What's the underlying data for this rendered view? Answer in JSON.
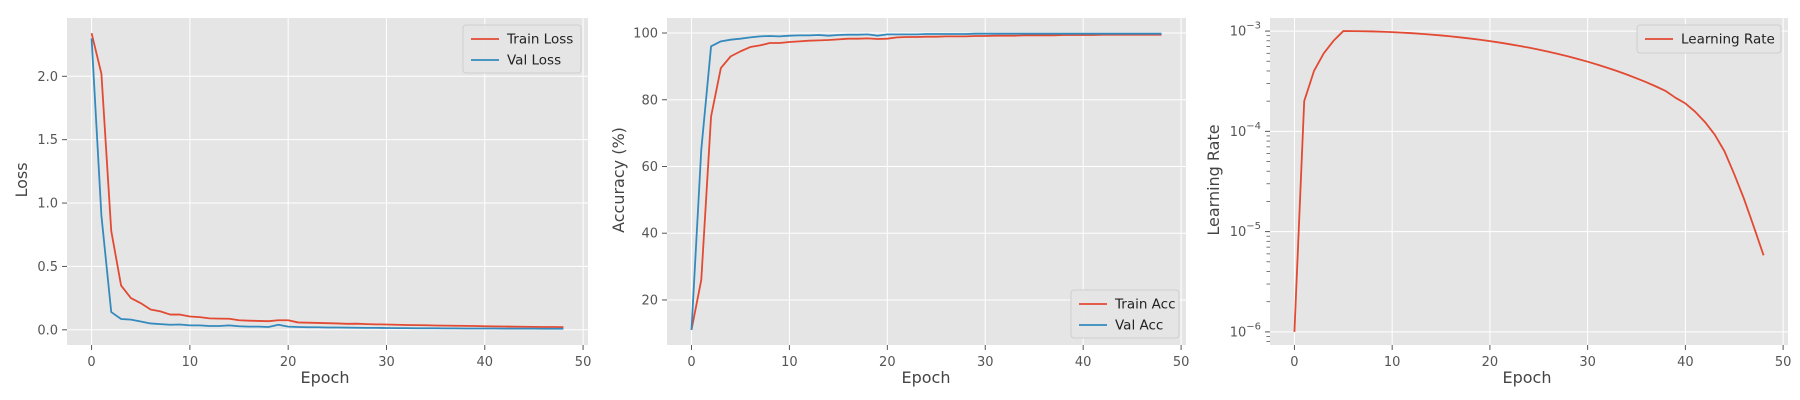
{
  "colors": {
    "background": "#ffffff",
    "panel": "#e5e5e5",
    "grid": "#ffffff",
    "tick_text": "#555555",
    "label_text": "#444444",
    "series_red": "#e24a33",
    "series_blue": "#348abd"
  },
  "chart_data": [
    {
      "type": "line",
      "title": "",
      "xlabel": "Epoch",
      "ylabel": "Loss",
      "xlim": [
        -2.5,
        50.5
      ],
      "ylim": [
        -0.12,
        2.46
      ],
      "xticks": [
        0,
        10,
        20,
        30,
        40,
        50
      ],
      "xtick_labels": [
        "0",
        "10",
        "20",
        "30",
        "40",
        "50"
      ],
      "yticks": [
        0.0,
        0.5,
        1.0,
        1.5,
        2.0
      ],
      "ytick_labels": [
        "0.0",
        "0.5",
        "1.0",
        "1.5",
        "2.0"
      ],
      "yscale": "linear",
      "grid": true,
      "legend_position": "top-right",
      "series": [
        {
          "name": "Train Loss",
          "color": "#e24a33",
          "x": [
            0,
            1,
            2,
            3,
            4,
            5,
            6,
            7,
            8,
            9,
            10,
            11,
            12,
            13,
            14,
            15,
            16,
            17,
            18,
            19,
            20,
            21,
            22,
            23,
            24,
            25,
            26,
            27,
            28,
            29,
            30,
            31,
            32,
            33,
            34,
            35,
            36,
            37,
            38,
            39,
            40,
            41,
            42,
            43,
            44,
            45,
            46,
            47,
            48
          ],
          "y": [
            2.34,
            2.02,
            0.78,
            0.35,
            0.25,
            0.21,
            0.16,
            0.145,
            0.12,
            0.12,
            0.105,
            0.1,
            0.09,
            0.088,
            0.087,
            0.075,
            0.072,
            0.07,
            0.068,
            0.075,
            0.075,
            0.058,
            0.056,
            0.054,
            0.052,
            0.05,
            0.047,
            0.048,
            0.045,
            0.043,
            0.042,
            0.04,
            0.038,
            0.037,
            0.036,
            0.034,
            0.033,
            0.032,
            0.031,
            0.03,
            0.028,
            0.027,
            0.026,
            0.025,
            0.024,
            0.023,
            0.022,
            0.022,
            0.021
          ]
        },
        {
          "name": "Val Loss",
          "color": "#348abd",
          "x": [
            0,
            1,
            2,
            3,
            4,
            5,
            6,
            7,
            8,
            9,
            10,
            11,
            12,
            13,
            14,
            15,
            16,
            17,
            18,
            19,
            20,
            21,
            22,
            23,
            24,
            25,
            26,
            27,
            28,
            29,
            30,
            31,
            32,
            33,
            34,
            35,
            36,
            37,
            38,
            39,
            40,
            41,
            42,
            43,
            44,
            45,
            46,
            47,
            48
          ],
          "y": [
            2.3,
            0.9,
            0.14,
            0.085,
            0.08,
            0.065,
            0.05,
            0.045,
            0.04,
            0.042,
            0.035,
            0.035,
            0.03,
            0.03,
            0.035,
            0.028,
            0.025,
            0.025,
            0.022,
            0.04,
            0.025,
            0.022,
            0.02,
            0.02,
            0.018,
            0.018,
            0.017,
            0.016,
            0.015,
            0.015,
            0.014,
            0.013,
            0.013,
            0.012,
            0.012,
            0.012,
            0.011,
            0.011,
            0.01,
            0.01,
            0.01,
            0.01,
            0.009,
            0.009,
            0.009,
            0.009,
            0.008,
            0.008,
            0.008
          ]
        }
      ]
    },
    {
      "type": "line",
      "title": "",
      "xlabel": "Epoch",
      "ylabel": "Accuracy (%)",
      "xlim": [
        -2.5,
        50.5
      ],
      "ylim": [
        6.5,
        104.5
      ],
      "xticks": [
        0,
        10,
        20,
        30,
        40,
        50
      ],
      "xtick_labels": [
        "0",
        "10",
        "20",
        "30",
        "40",
        "50"
      ],
      "yticks": [
        20,
        40,
        60,
        80,
        100
      ],
      "ytick_labels": [
        "20",
        "40",
        "60",
        "80",
        "100"
      ],
      "yscale": "linear",
      "grid": true,
      "legend_position": "bottom-right",
      "series": [
        {
          "name": "Train Acc",
          "color": "#e24a33",
          "x": [
            0,
            1,
            2,
            3,
            4,
            5,
            6,
            7,
            8,
            9,
            10,
            11,
            12,
            13,
            14,
            15,
            16,
            17,
            18,
            19,
            20,
            21,
            22,
            23,
            24,
            25,
            26,
            27,
            28,
            29,
            30,
            31,
            32,
            33,
            34,
            35,
            36,
            37,
            38,
            39,
            40,
            41,
            42,
            43,
            44,
            45,
            46,
            47,
            48
          ],
          "y": [
            11,
            26,
            75,
            89.5,
            93,
            94.5,
            95.8,
            96.3,
            97,
            97,
            97.3,
            97.5,
            97.7,
            97.8,
            97.9,
            98.1,
            98.3,
            98.3,
            98.4,
            98.2,
            98.3,
            98.7,
            98.8,
            98.8,
            98.9,
            98.9,
            99,
            99,
            99,
            99.1,
            99.1,
            99.2,
            99.2,
            99.2,
            99.3,
            99.3,
            99.3,
            99.3,
            99.4,
            99.4,
            99.4,
            99.4,
            99.5,
            99.5,
            99.5,
            99.5,
            99.5,
            99.5,
            99.5
          ]
        },
        {
          "name": "Val Acc",
          "color": "#348abd",
          "x": [
            0,
            1,
            2,
            3,
            4,
            5,
            6,
            7,
            8,
            9,
            10,
            11,
            12,
            13,
            14,
            15,
            16,
            17,
            18,
            19,
            20,
            21,
            22,
            23,
            24,
            25,
            26,
            27,
            28,
            29,
            30,
            31,
            32,
            33,
            34,
            35,
            36,
            37,
            38,
            39,
            40,
            41,
            42,
            43,
            44,
            45,
            46,
            47,
            48
          ],
          "y": [
            11,
            65,
            96,
            97.5,
            98,
            98.3,
            98.7,
            99,
            99.1,
            99,
            99.2,
            99.3,
            99.3,
            99.4,
            99.2,
            99.4,
            99.5,
            99.5,
            99.6,
            99.2,
            99.6,
            99.6,
            99.6,
            99.6,
            99.7,
            99.7,
            99.7,
            99.7,
            99.7,
            99.8,
            99.8,
            99.8,
            99.8,
            99.8,
            99.8,
            99.8,
            99.8,
            99.8,
            99.8,
            99.8,
            99.8,
            99.8,
            99.8,
            99.8,
            99.8,
            99.8,
            99.8,
            99.8,
            99.8
          ]
        }
      ]
    },
    {
      "type": "line",
      "title": "",
      "xlabel": "Epoch",
      "ylabel": "Learning Rate",
      "xlim": [
        -2.5,
        50.5
      ],
      "ylim": [
        7.4e-07,
        0.00135
      ],
      "xticks": [
        0,
        10,
        20,
        30,
        40,
        50
      ],
      "xtick_labels": [
        "0",
        "10",
        "20",
        "30",
        "40",
        "50"
      ],
      "yticks": [
        1e-06,
        1e-05,
        0.0001,
        0.001
      ],
      "ytick_labels": [
        "10^-6",
        "10^-5",
        "10^-4",
        "10^-3"
      ],
      "yscale": "log",
      "grid": true,
      "legend_position": "top-right",
      "series": [
        {
          "name": "Learning Rate",
          "color": "#e24a33",
          "x": [
            0,
            1,
            2,
            3,
            4,
            5,
            6,
            7,
            8,
            9,
            10,
            11,
            12,
            13,
            14,
            15,
            16,
            17,
            18,
            19,
            20,
            21,
            22,
            23,
            24,
            25,
            26,
            27,
            28,
            29,
            30,
            31,
            32,
            33,
            34,
            35,
            36,
            37,
            38,
            39,
            40,
            41,
            42,
            43,
            44,
            45,
            46,
            47,
            48
          ],
          "y": [
            1e-06,
            0.0002,
            0.0004,
            0.0006,
            0.0008,
            0.001,
            0.000999,
            0.000996,
            0.000991,
            0.000984,
            0.000976,
            0.000965,
            0.000952,
            0.000938,
            0.000922,
            0.000905,
            0.000885,
            0.000864,
            0.000842,
            0.000819,
            0.000794,
            0.000768,
            0.00074,
            0.000712,
            0.000683,
            0.000653,
            0.000622,
            0.000591,
            0.000559,
            0.000527,
            0.000495,
            0.000463,
            0.000431,
            0.0004,
            0.000369,
            0.000338,
            0.000309,
            0.00028,
            0.000252,
            0.000216,
            0.00019,
            0.000157,
            0.000124,
            9.28e-05,
            6.33e-05,
            3.74e-05,
            2.12e-05,
            1.12e-05,
            5.8e-06
          ]
        }
      ]
    }
  ]
}
